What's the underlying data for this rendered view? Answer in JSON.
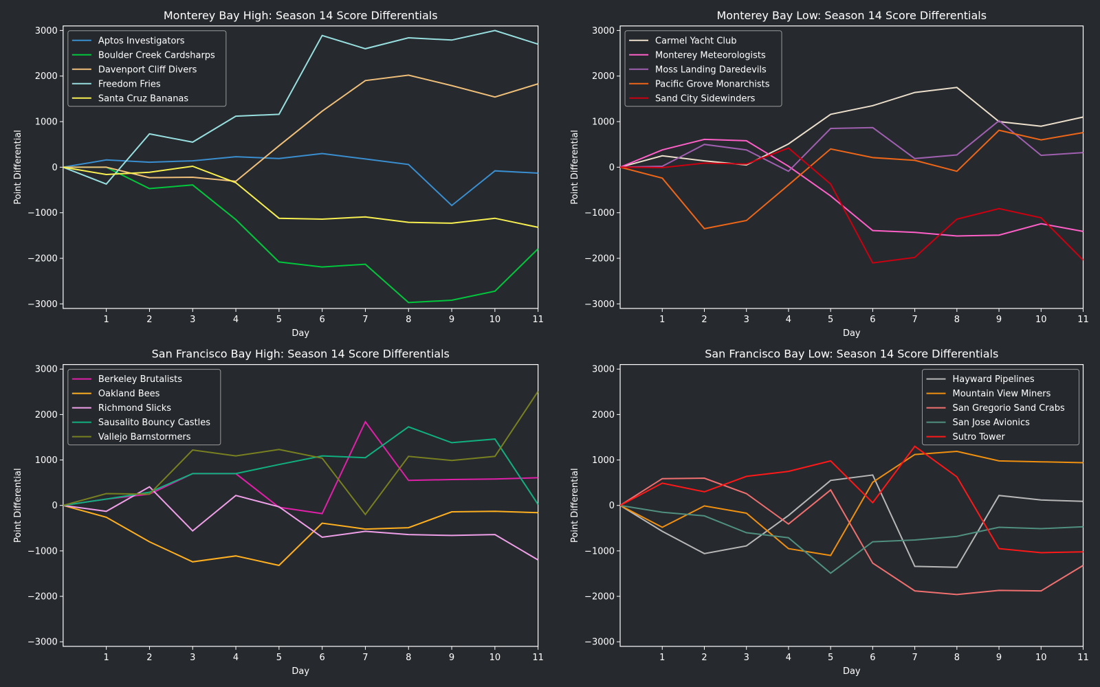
{
  "chart_data": [
    {
      "type": "line",
      "title": "Monterey Bay High: Season 14 Score Differentials",
      "xlabel": "Day",
      "ylabel": "Point Differential",
      "x": [
        0,
        1,
        2,
        3,
        4,
        5,
        6,
        7,
        8,
        9,
        10,
        11
      ],
      "xticks": [
        1,
        2,
        3,
        4,
        5,
        6,
        7,
        8,
        9,
        10,
        11
      ],
      "yticks": [
        -3000,
        -2000,
        -1000,
        0,
        1000,
        2000,
        3000
      ],
      "ytick_labels": [
        "−3000",
        "−2000",
        "−1000",
        "0",
        "1000",
        "2000",
        "3000"
      ],
      "xlim": [
        0,
        11
      ],
      "ylim": [
        -3100,
        3100
      ],
      "grid": false,
      "legend_position": "top-left",
      "series": [
        {
          "name": "Aptos Investigators",
          "color": "#3a8fd0",
          "values": [
            0,
            160,
            110,
            140,
            230,
            190,
            300,
            180,
            60,
            -840,
            -80,
            -130
          ]
        },
        {
          "name": "Boulder Creek Cardsharps",
          "color": "#00c73c",
          "values": [
            0,
            0,
            -470,
            -390,
            -1150,
            -2080,
            -2190,
            -2130,
            -2970,
            -2920,
            -2720,
            -1790
          ]
        },
        {
          "name": "Davenport Cliff Divers",
          "color": "#f0c07a",
          "values": [
            0,
            0,
            -230,
            -220,
            -310,
            470,
            1230,
            1900,
            2020,
            1790,
            1540,
            1830
          ]
        },
        {
          "name": "Freedom Fries",
          "color": "#98e0e0",
          "values": [
            0,
            -370,
            730,
            550,
            1120,
            1160,
            2890,
            2600,
            2840,
            2790,
            3000,
            2700
          ]
        },
        {
          "name": "Santa Cruz Bananas",
          "color": "#f8f050",
          "values": [
            0,
            -160,
            -110,
            20,
            -340,
            -1120,
            -1140,
            -1090,
            -1210,
            -1230,
            -1120,
            -1320
          ]
        }
      ]
    },
    {
      "type": "line",
      "title": "Monterey Bay Low: Season 14 Score Differentials",
      "xlabel": "Day",
      "ylabel": "Point Differential",
      "x": [
        0,
        1,
        2,
        3,
        4,
        5,
        6,
        7,
        8,
        9,
        10,
        11
      ],
      "xticks": [
        1,
        2,
        3,
        4,
        5,
        6,
        7,
        8,
        9,
        10,
        11
      ],
      "yticks": [
        -3000,
        -2000,
        -1000,
        0,
        1000,
        2000,
        3000
      ],
      "ytick_labels": [
        "−3000",
        "−2000",
        "−1000",
        "0",
        "1000",
        "2000",
        "3000"
      ],
      "xlim": [
        0,
        11
      ],
      "ylim": [
        -3100,
        3100
      ],
      "grid": false,
      "legend_position": "top-left",
      "series": [
        {
          "name": "Carmel Yacht Club",
          "color": "#ece0cc",
          "values": [
            0,
            250,
            140,
            50,
            510,
            1160,
            1350,
            1640,
            1750,
            1000,
            900,
            1100
          ]
        },
        {
          "name": "Monterey Meteorologists",
          "color": "#ff60c8",
          "values": [
            0,
            380,
            610,
            580,
            20,
            -630,
            -1390,
            -1430,
            -1510,
            -1490,
            -1240,
            -1410
          ]
        },
        {
          "name": "Moss Landing Daredevils",
          "color": "#a060b0",
          "values": [
            0,
            20,
            500,
            380,
            -90,
            850,
            870,
            190,
            270,
            1020,
            260,
            320
          ]
        },
        {
          "name": "Pacific Grove Monarchists",
          "color": "#ee6618",
          "values": [
            0,
            -240,
            -1350,
            -1170,
            -390,
            400,
            210,
            150,
            -90,
            810,
            600,
            760
          ]
        },
        {
          "name": "Sand City Sidewinders",
          "color": "#cc0010",
          "values": [
            0,
            -10,
            90,
            70,
            420,
            -370,
            -2100,
            -1980,
            -1140,
            -910,
            -1110,
            -2040
          ]
        }
      ]
    },
    {
      "type": "line",
      "title": "San Francisco Bay High: Season 14 Score Differentials",
      "xlabel": "Day",
      "ylabel": "Point Differential",
      "x": [
        0,
        1,
        2,
        3,
        4,
        5,
        6,
        7,
        8,
        9,
        10,
        11
      ],
      "xticks": [
        1,
        2,
        3,
        4,
        5,
        6,
        7,
        8,
        9,
        10,
        11
      ],
      "yticks": [
        -3000,
        -2000,
        -1000,
        0,
        1000,
        2000,
        3000
      ],
      "ytick_labels": [
        "−3000",
        "−2000",
        "−1000",
        "0",
        "1000",
        "2000",
        "3000"
      ],
      "xlim": [
        0,
        11
      ],
      "ylim": [
        -3100,
        3100
      ],
      "grid": false,
      "legend_position": "top-left",
      "series": [
        {
          "name": "Berkeley Brutalists",
          "color": "#e020a8",
          "values": [
            0,
            140,
            250,
            700,
            700,
            -40,
            -180,
            1840,
            550,
            570,
            580,
            610
          ]
        },
        {
          "name": "Oakland Bees",
          "color": "#ffb020",
          "values": [
            0,
            -260,
            -800,
            -1240,
            -1110,
            -1320,
            -390,
            -520,
            -490,
            -140,
            -130,
            -160
          ]
        },
        {
          "name": "Richmond Slicks",
          "color": "#f0a0e8",
          "values": [
            0,
            -130,
            410,
            -560,
            220,
            -30,
            -700,
            -570,
            -640,
            -660,
            -640,
            -1200
          ]
        },
        {
          "name": "Sausalito Bouncy Castles",
          "color": "#10b080",
          "values": [
            0,
            140,
            290,
            700,
            700,
            900,
            1090,
            1050,
            1730,
            1380,
            1460,
            20
          ]
        },
        {
          "name": "Vallejo Barnstormers",
          "color": "#788020",
          "values": [
            0,
            260,
            250,
            1220,
            1090,
            1230,
            1040,
            -200,
            1080,
            990,
            1080,
            2510
          ]
        }
      ]
    },
    {
      "type": "line",
      "title": "San Francisco Bay Low: Season 14 Score Differentials",
      "xlabel": "Day",
      "ylabel": "Point Differential",
      "x": [
        0,
        1,
        2,
        3,
        4,
        5,
        6,
        7,
        8,
        9,
        10,
        11
      ],
      "xticks": [
        1,
        2,
        3,
        4,
        5,
        6,
        7,
        8,
        9,
        10,
        11
      ],
      "yticks": [
        -3000,
        -2000,
        -1000,
        0,
        1000,
        2000,
        3000
      ],
      "ytick_labels": [
        "−3000",
        "−2000",
        "−1000",
        "0",
        "1000",
        "2000",
        "3000"
      ],
      "xlim": [
        0,
        11
      ],
      "ylim": [
        -3100,
        3100
      ],
      "grid": false,
      "legend_position": "top-right",
      "series": [
        {
          "name": "Hayward Pipelines",
          "color": "#b8b8b8",
          "values": [
            0,
            -570,
            -1060,
            -890,
            -220,
            550,
            670,
            -1340,
            -1360,
            220,
            120,
            90
          ]
        },
        {
          "name": "Mountain View Miners",
          "color": "#f09010",
          "values": [
            0,
            -480,
            -10,
            -170,
            -950,
            -1100,
            510,
            1120,
            1190,
            980,
            960,
            940
          ]
        },
        {
          "name": "San Gregorio Sand Crabs",
          "color": "#f07070",
          "values": [
            0,
            590,
            600,
            260,
            -410,
            340,
            -1270,
            -1880,
            -1960,
            -1870,
            -1880,
            -1320
          ]
        },
        {
          "name": "San Jose Avionics",
          "color": "#509080",
          "values": [
            0,
            -150,
            -230,
            -600,
            -710,
            -1490,
            -800,
            -760,
            -680,
            -480,
            -510,
            -470
          ]
        },
        {
          "name": "Sutro Tower",
          "color": "#ff1818",
          "values": [
            0,
            490,
            300,
            640,
            750,
            980,
            60,
            1300,
            630,
            -950,
            -1040,
            -1020
          ]
        }
      ]
    }
  ]
}
